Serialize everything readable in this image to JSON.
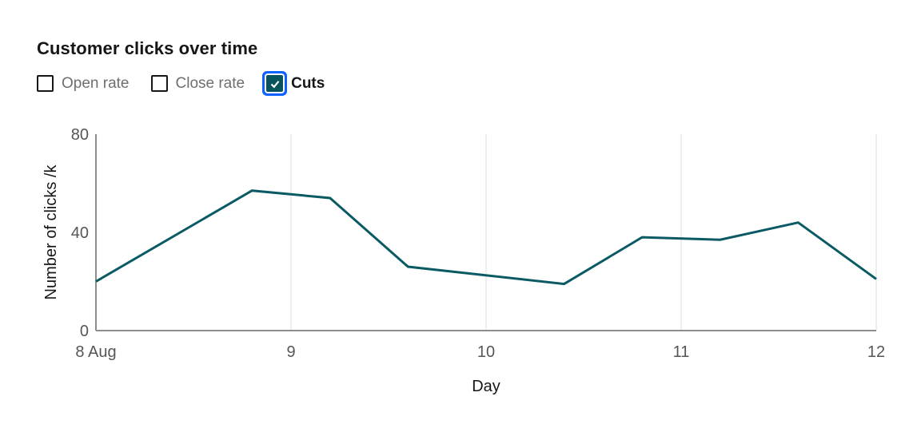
{
  "title": "Customer clicks over time",
  "legend": {
    "items": [
      {
        "id": "open-rate",
        "label": "Open rate",
        "checked": false,
        "focused": false
      },
      {
        "id": "close-rate",
        "label": "Close rate",
        "checked": false,
        "focused": false
      },
      {
        "id": "cuts",
        "label": "Cuts",
        "checked": true,
        "focused": true
      }
    ]
  },
  "colors": {
    "series_teal": "#0a5a64",
    "checkbox_checked": "#07545c",
    "focus_ring": "#0f62fe",
    "axis": "#8d8d8d",
    "grid": "#e9e9e9",
    "tick_text": "#565656",
    "title_text": "#161616",
    "muted_label": "#6f6f6f"
  },
  "chart_data": {
    "type": "line",
    "title": "Customer clicks over time",
    "xlabel": "Day",
    "ylabel": "Number of clicks /k",
    "x": [
      8.0,
      8.8,
      9.2,
      9.6,
      10.4,
      10.8,
      11.2,
      11.6,
      12.0
    ],
    "series": [
      {
        "name": "Cuts",
        "values": [
          20,
          57,
          54,
          26,
          19,
          38,
          37,
          44,
          21
        ]
      }
    ],
    "xticks": {
      "values": [
        8,
        9,
        10,
        11,
        12
      ],
      "labels": [
        "8 Aug",
        "9",
        "10",
        "11",
        "12"
      ]
    },
    "yticks": [
      0,
      40,
      80
    ],
    "xlim": [
      8,
      12
    ],
    "ylim": [
      0,
      80
    ],
    "grid": "vertical-only",
    "legend_position": "top-left-checkboxes"
  }
}
